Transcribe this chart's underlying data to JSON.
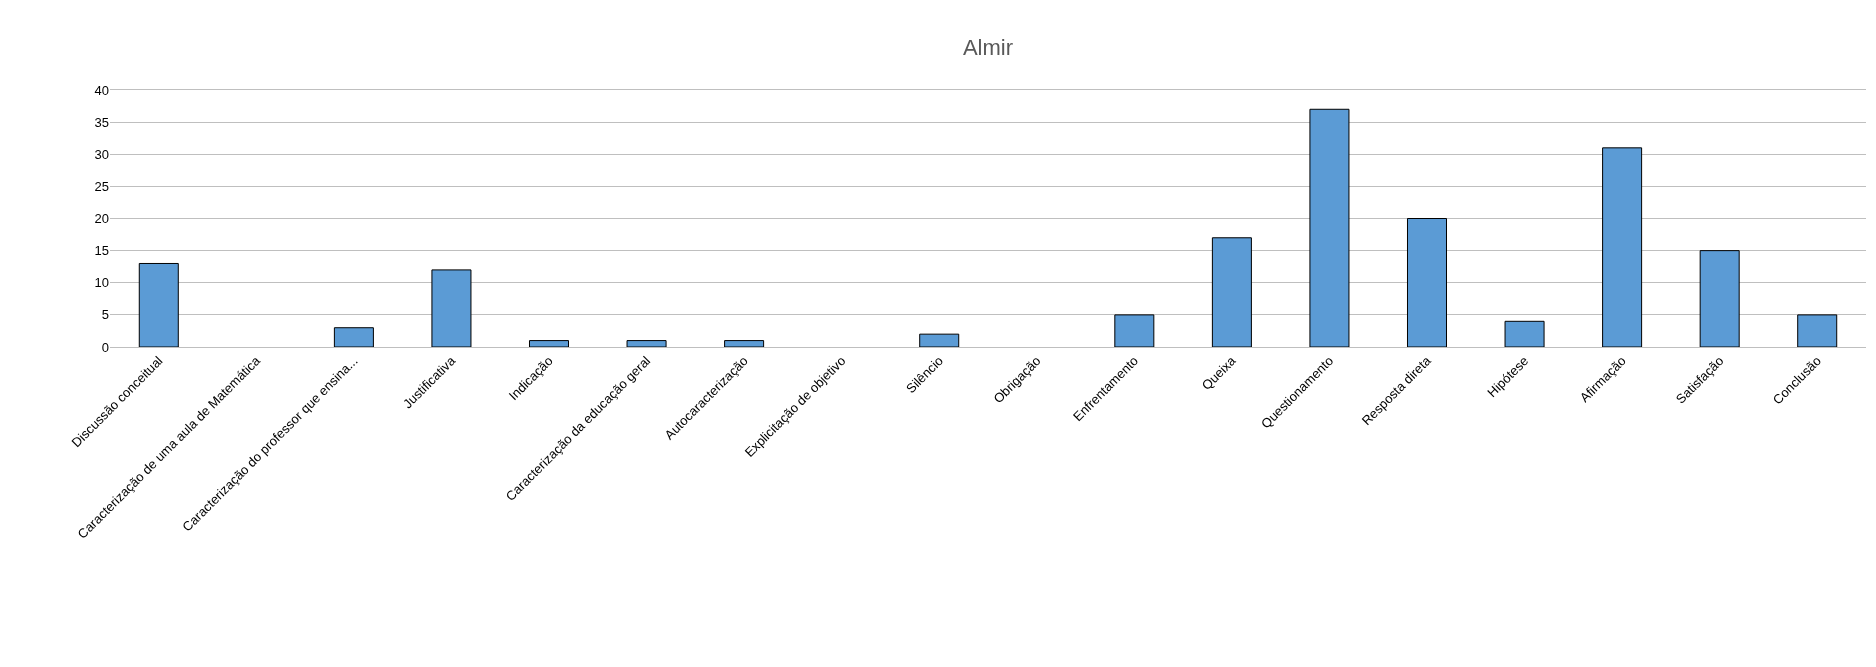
{
  "chart_data": {
    "type": "bar",
    "title": "Almir",
    "categories": [
      "Discussão conceitual",
      "Caracterização de uma aula de Matemática",
      "Caracterização do professor que ensina...",
      "Justificativa",
      "Indicação",
      "Caracterização da educação geral",
      "Autocaracterização",
      "Explicitação de objetivo",
      "Silêncio",
      "Obrigação",
      "Enfrentamento",
      "Queixa",
      "Questionamento",
      "Resposta direta",
      "Hipótese",
      "Afirmação",
      "Satisfação",
      "Conclusão"
    ],
    "values": [
      13,
      0,
      3,
      12,
      1,
      1,
      1,
      0,
      2,
      0,
      5,
      17,
      37,
      20,
      4,
      31,
      15,
      5
    ],
    "color": "#5b9bd5",
    "ylim": [
      0,
      40
    ],
    "yticks": [
      0,
      5,
      10,
      15,
      20,
      25,
      30,
      35,
      40
    ],
    "grid": "y"
  }
}
